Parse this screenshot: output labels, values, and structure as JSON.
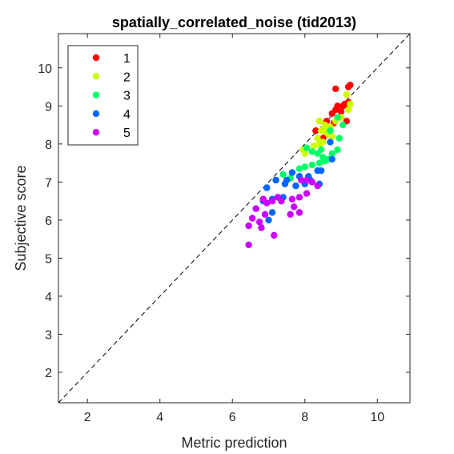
{
  "chart_data": {
    "type": "scatter",
    "title": "spatially_correlated_noise (tid2013)",
    "xlabel": "Metric prediction",
    "ylabel": "Subjective score",
    "xlim": [
      1.2,
      10.9
    ],
    "ylim": [
      1.2,
      10.9
    ],
    "xticks": [
      2,
      4,
      6,
      8,
      10
    ],
    "yticks": [
      2,
      3,
      4,
      5,
      6,
      7,
      8,
      9,
      10
    ],
    "grid": false,
    "legend_position": "top-left",
    "reference_line": "dashed y = x",
    "series": [
      {
        "name": "1",
        "color": "#ff0000",
        "points": [
          [
            8.85,
            9.45
          ],
          [
            9.2,
            9.5
          ],
          [
            9.25,
            9.55
          ],
          [
            8.9,
            9.0
          ],
          [
            9.05,
            9.0
          ],
          [
            9.2,
            9.1
          ],
          [
            9.15,
            9.0
          ],
          [
            8.75,
            8.8
          ],
          [
            8.85,
            8.9
          ],
          [
            9.0,
            8.85
          ],
          [
            8.6,
            8.6
          ],
          [
            9.15,
            8.6
          ],
          [
            8.3,
            8.35
          ],
          [
            8.6,
            8.25
          ],
          [
            8.7,
            8.35
          ],
          [
            8.5,
            8.15
          ],
          [
            8.8,
            8.55
          ],
          [
            8.4,
            8.6
          ],
          [
            9.1,
            9.05
          ]
        ]
      },
      {
        "name": "2",
        "color": "#ccff00",
        "points": [
          [
            9.15,
            9.3
          ],
          [
            9.25,
            9.05
          ],
          [
            9.2,
            8.9
          ],
          [
            9.0,
            8.7
          ],
          [
            8.85,
            8.6
          ],
          [
            8.7,
            8.45
          ],
          [
            8.55,
            8.5
          ],
          [
            8.4,
            8.6
          ],
          [
            8.45,
            8.35
          ],
          [
            8.6,
            8.3
          ],
          [
            8.75,
            8.2
          ],
          [
            8.5,
            8.05
          ],
          [
            8.4,
            8.0
          ],
          [
            8.0,
            7.75
          ],
          [
            7.95,
            7.85
          ],
          [
            8.35,
            8.15
          ],
          [
            8.55,
            8.4
          ],
          [
            8.25,
            7.95
          ],
          [
            8.65,
            8.25
          ]
        ]
      },
      {
        "name": "3",
        "color": "#00ff66",
        "points": [
          [
            8.05,
            7.9
          ],
          [
            8.2,
            7.8
          ],
          [
            8.35,
            7.75
          ],
          [
            8.5,
            7.65
          ],
          [
            8.65,
            7.6
          ],
          [
            8.75,
            7.75
          ],
          [
            8.9,
            7.85
          ],
          [
            8.95,
            8.15
          ],
          [
            9.05,
            8.5
          ],
          [
            8.9,
            8.7
          ],
          [
            8.7,
            8.35
          ],
          [
            8.45,
            7.85
          ],
          [
            8.0,
            7.4
          ],
          [
            8.2,
            7.45
          ],
          [
            8.4,
            7.5
          ],
          [
            7.85,
            7.35
          ],
          [
            7.6,
            7.1
          ],
          [
            7.4,
            7.2
          ],
          [
            8.55,
            7.55
          ]
        ]
      },
      {
        "name": "4",
        "color": "#0066ff",
        "points": [
          [
            8.7,
            8.05
          ],
          [
            8.75,
            7.6
          ],
          [
            8.45,
            7.3
          ],
          [
            8.35,
            7.3
          ],
          [
            8.1,
            7.15
          ],
          [
            7.85,
            7.15
          ],
          [
            7.65,
            7.25
          ],
          [
            7.5,
            7.05
          ],
          [
            7.2,
            7.05
          ],
          [
            7.45,
            6.95
          ],
          [
            7.75,
            6.9
          ],
          [
            8.0,
            6.95
          ],
          [
            8.15,
            7.05
          ],
          [
            8.4,
            6.95
          ],
          [
            7.4,
            6.6
          ],
          [
            7.1,
            6.55
          ],
          [
            6.95,
            6.85
          ],
          [
            6.85,
            6.5
          ],
          [
            7.1,
            6.2
          ],
          [
            7.0,
            6.0
          ]
        ]
      },
      {
        "name": "5",
        "color": "#cc00ff",
        "points": [
          [
            8.35,
            6.9
          ],
          [
            8.2,
            7.0
          ],
          [
            8.05,
            7.05
          ],
          [
            7.9,
            7.05
          ],
          [
            8.05,
            6.7
          ],
          [
            7.85,
            6.6
          ],
          [
            7.65,
            6.55
          ],
          [
            7.7,
            6.35
          ],
          [
            7.85,
            6.2
          ],
          [
            7.6,
            6.15
          ],
          [
            7.35,
            6.5
          ],
          [
            7.25,
            6.6
          ],
          [
            7.1,
            6.5
          ],
          [
            6.95,
            6.45
          ],
          [
            6.85,
            6.55
          ],
          [
            6.9,
            6.15
          ],
          [
            6.65,
            6.3
          ],
          [
            6.75,
            5.95
          ],
          [
            6.55,
            6.05
          ],
          [
            6.8,
            5.8
          ],
          [
            7.15,
            5.6
          ],
          [
            6.45,
            5.85
          ],
          [
            6.45,
            5.35
          ]
        ]
      }
    ]
  }
}
